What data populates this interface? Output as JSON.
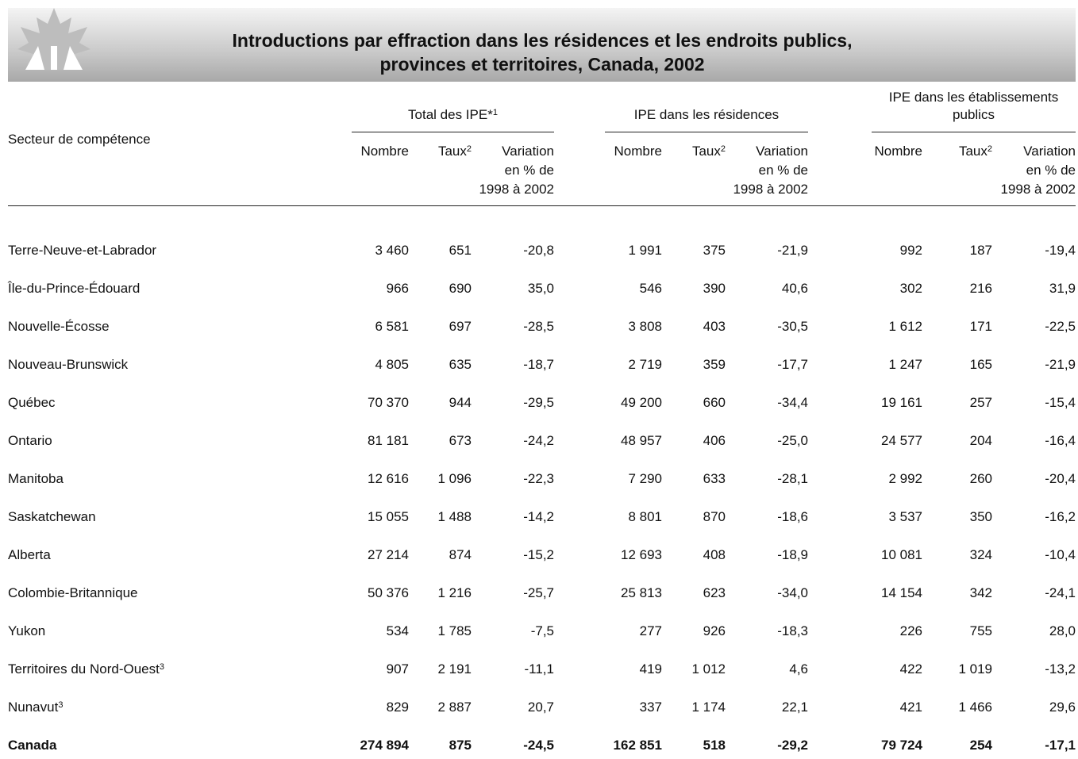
{
  "header": {
    "title_lines": [
      "Introductions par effraction dans les résidences et les endroits publics,",
      "provinces et territoires, Canada, 2002"
    ]
  },
  "table": {
    "row_header": "Secteur de compétence",
    "groups": [
      {
        "label_lines": [
          "Total des IPE*"
        ],
        "sup": "1",
        "columns": [
          {
            "lines": [
              "Nombre"
            ]
          },
          {
            "lines": [
              "Taux"
            ],
            "sup": "2"
          },
          {
            "lines": [
              "Variation",
              "en % de",
              "1998 à 2002"
            ]
          }
        ]
      },
      {
        "label_lines": [
          "IPE dans les résidences"
        ],
        "columns": [
          {
            "lines": [
              "Nombre"
            ]
          },
          {
            "lines": [
              "Taux"
            ],
            "sup": "2"
          },
          {
            "lines": [
              "Variation",
              "en % de",
              "1998 à 2002"
            ]
          }
        ]
      },
      {
        "label_lines": [
          "IPE dans les établissements",
          "publics"
        ],
        "columns": [
          {
            "lines": [
              "Nombre"
            ]
          },
          {
            "lines": [
              "Taux"
            ],
            "sup": "2"
          },
          {
            "lines": [
              "Variation",
              "en % de",
              "1998 à 2002"
            ]
          }
        ]
      }
    ],
    "rows": [
      {
        "name": "Terre-Neuve-et-Labrador",
        "cells": [
          "3 460",
          "651",
          "-20,8",
          "1 991",
          "375",
          "-21,9",
          "992",
          "187",
          "-19,4"
        ]
      },
      {
        "name": "Île-du-Prince-Édouard",
        "cells": [
          "966",
          "690",
          "35,0",
          "546",
          "390",
          "40,6",
          "302",
          "216",
          "31,9"
        ]
      },
      {
        "name": "Nouvelle-Écosse",
        "cells": [
          "6 581",
          "697",
          "-28,5",
          "3 808",
          "403",
          "-30,5",
          "1 612",
          "171",
          "-22,5"
        ]
      },
      {
        "name": "Nouveau-Brunswick",
        "cells": [
          "4 805",
          "635",
          "-18,7",
          "2 719",
          "359",
          "-17,7",
          "1 247",
          "165",
          "-21,9"
        ]
      },
      {
        "name": "Québec",
        "cells": [
          "70 370",
          "944",
          "-29,5",
          "49 200",
          "660",
          "-34,4",
          "19 161",
          "257",
          "-15,4"
        ]
      },
      {
        "name": "Ontario",
        "cells": [
          "81 181",
          "673",
          "-24,2",
          "48 957",
          "406",
          "-25,0",
          "24 577",
          "204",
          "-16,4"
        ]
      },
      {
        "name": "Manitoba",
        "cells": [
          "12 616",
          "1 096",
          "-22,3",
          "7 290",
          "633",
          "-28,1",
          "2 992",
          "260",
          "-20,4"
        ]
      },
      {
        "name": "Saskatchewan",
        "cells": [
          "15 055",
          "1 488",
          "-14,2",
          "8 801",
          "870",
          "-18,6",
          "3 537",
          "350",
          "-16,2"
        ]
      },
      {
        "name": "Alberta",
        "cells": [
          "27 214",
          "874",
          "-15,2",
          "12 693",
          "408",
          "-18,9",
          "10 081",
          "324",
          "-10,4"
        ]
      },
      {
        "name": "Colombie-Britannique",
        "cells": [
          "50 376",
          "1 216",
          "-25,7",
          "25 813",
          "623",
          "-34,0",
          "14 154",
          "342",
          "-24,1"
        ]
      },
      {
        "name": "Yukon",
        "cells": [
          "534",
          "1 785",
          "-7,5",
          "277",
          "926",
          "-18,3",
          "226",
          "755",
          "28,0"
        ]
      },
      {
        "name": "Territoires du Nord-Ouest",
        "sup": "3",
        "cells": [
          "907",
          "2 191",
          "-11,1",
          "419",
          "1 012",
          "4,6",
          "422",
          "1 019",
          "-13,2"
        ]
      },
      {
        "name": "Nunavut",
        "sup": "3",
        "cells": [
          "829",
          "2 887",
          "20,7",
          "337",
          "1 174",
          "22,1",
          "421",
          "1 466",
          "29,6"
        ]
      }
    ],
    "total": {
      "name": "Canada",
      "cells": [
        "274 894",
        "875",
        "-24,5",
        "162 851",
        "518",
        "-29,2",
        "79 724",
        "254",
        "-17,1"
      ]
    }
  }
}
